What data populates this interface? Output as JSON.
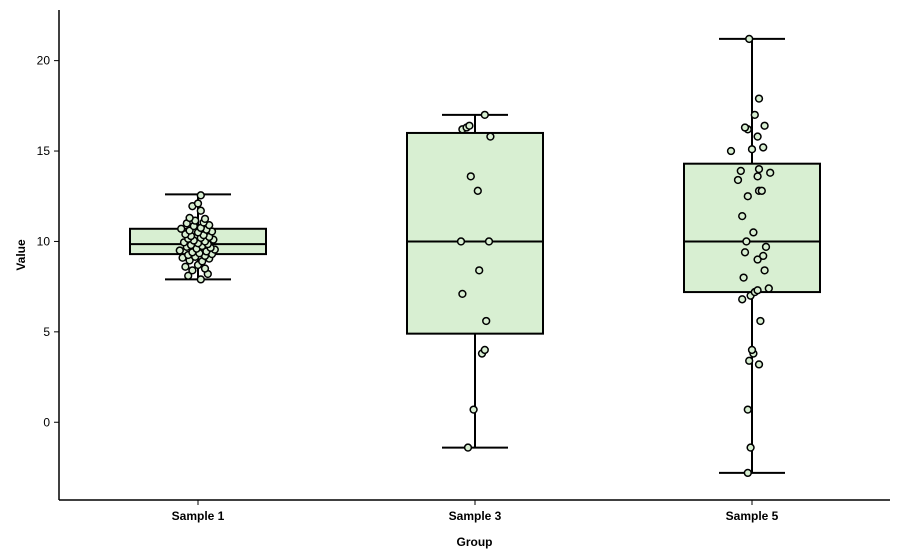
{
  "chart_data": {
    "type": "box",
    "xlabel": "Group",
    "ylabel": "Value",
    "ylim": [
      -4.3,
      22.8
    ],
    "yticks": [
      0,
      5,
      10,
      15,
      20
    ],
    "ytick_labels": [
      "0",
      "5",
      "10",
      "15",
      "20"
    ],
    "grid": false,
    "box_fill": "#d8efd2",
    "line_color": "#000000",
    "point_fill": "#d8efd2",
    "categories": [
      "Sample 1",
      "Sample 3",
      "Sample 5"
    ],
    "boxes": [
      {
        "category": "Sample 1",
        "whisker_low": 7.9,
        "q1": 9.3,
        "median": 9.85,
        "q3": 10.7,
        "whisker_high": 12.6
      },
      {
        "category": "Sample 3",
        "whisker_low": -1.4,
        "q1": 4.9,
        "median": 10.0,
        "q3": 16.0,
        "whisker_high": 17.0
      },
      {
        "category": "Sample 5",
        "whisker_low": -2.8,
        "q1": 7.2,
        "median": 10.0,
        "q3": 14.3,
        "whisker_high": 21.2
      }
    ],
    "points": [
      [
        [
          -0.07,
          8.1
        ],
        [
          0.02,
          7.9
        ],
        [
          0.07,
          8.2
        ],
        [
          -0.04,
          8.4
        ],
        [
          0.05,
          8.5
        ],
        [
          -0.09,
          8.6
        ],
        [
          0.0,
          8.7
        ],
        [
          0.03,
          8.9
        ],
        [
          -0.06,
          8.95
        ],
        [
          0.08,
          9.05
        ],
        [
          -0.11,
          9.1
        ],
        [
          -0.02,
          9.15
        ],
        [
          0.05,
          9.2
        ],
        [
          -0.07,
          9.25
        ],
        [
          0.1,
          9.3
        ],
        [
          0.01,
          9.35
        ],
        [
          -0.04,
          9.4
        ],
        [
          0.06,
          9.45
        ],
        [
          -0.13,
          9.5
        ],
        [
          0.12,
          9.55
        ],
        [
          -0.01,
          9.6
        ],
        [
          0.09,
          9.65
        ],
        [
          -0.08,
          9.7
        ],
        [
          0.03,
          9.75
        ],
        [
          -0.05,
          9.8
        ],
        [
          0.07,
          9.85
        ],
        [
          0.0,
          9.9
        ],
        [
          -0.1,
          9.95
        ],
        [
          0.05,
          10.0
        ],
        [
          -0.03,
          10.05
        ],
        [
          0.11,
          10.1
        ],
        [
          -0.07,
          10.15
        ],
        [
          0.02,
          10.2
        ],
        [
          0.08,
          10.25
        ],
        [
          -0.05,
          10.3
        ],
        [
          0.04,
          10.35
        ],
        [
          -0.09,
          10.4
        ],
        [
          0.0,
          10.5
        ],
        [
          0.1,
          10.55
        ],
        [
          -0.06,
          10.6
        ],
        [
          0.06,
          10.65
        ],
        [
          -0.12,
          10.7
        ],
        [
          0.02,
          10.75
        ],
        [
          -0.03,
          10.85
        ],
        [
          0.08,
          10.9
        ],
        [
          -0.08,
          11.0
        ],
        [
          0.04,
          11.05
        ],
        [
          -0.02,
          11.15
        ],
        [
          0.05,
          11.25
        ],
        [
          -0.06,
          11.3
        ],
        [
          0.02,
          11.7
        ],
        [
          -0.04,
          11.95
        ],
        [
          0.0,
          12.1
        ],
        [
          0.02,
          12.55
        ]
      ],
      [
        [
          -0.05,
          -1.4
        ],
        [
          -0.01,
          0.7
        ],
        [
          0.05,
          3.8
        ],
        [
          0.07,
          4.0
        ],
        [
          0.08,
          5.6
        ],
        [
          -0.09,
          7.1
        ],
        [
          0.03,
          8.4
        ],
        [
          -0.1,
          10.0
        ],
        [
          0.1,
          10.0
        ],
        [
          0.02,
          12.8
        ],
        [
          -0.03,
          13.6
        ],
        [
          0.11,
          15.8
        ],
        [
          -0.09,
          16.2
        ],
        [
          -0.06,
          16.3
        ],
        [
          -0.04,
          16.4
        ],
        [
          0.07,
          17.0
        ]
      ],
      [
        [
          -0.03,
          -2.8
        ],
        [
          -0.01,
          -1.4
        ],
        [
          -0.03,
          0.7
        ],
        [
          -0.02,
          3.4
        ],
        [
          0.05,
          3.2
        ],
        [
          0.01,
          3.8
        ],
        [
          0.0,
          4.0
        ],
        [
          0.06,
          5.6
        ],
        [
          -0.07,
          6.8
        ],
        [
          -0.01,
          7.0
        ],
        [
          0.02,
          7.2
        ],
        [
          0.04,
          7.3
        ],
        [
          0.12,
          7.4
        ],
        [
          -0.06,
          8.0
        ],
        [
          0.09,
          8.4
        ],
        [
          0.04,
          9.0
        ],
        [
          0.08,
          9.2
        ],
        [
          -0.05,
          9.4
        ],
        [
          0.1,
          9.7
        ],
        [
          -0.04,
          10.0
        ],
        [
          0.01,
          10.5
        ],
        [
          -0.07,
          11.4
        ],
        [
          -0.03,
          12.5
        ],
        [
          0.05,
          12.8
        ],
        [
          0.07,
          12.8
        ],
        [
          0.04,
          13.6
        ],
        [
          -0.1,
          13.4
        ],
        [
          -0.08,
          13.9
        ],
        [
          0.13,
          13.8
        ],
        [
          0.05,
          14.0
        ],
        [
          -0.15,
          15.0
        ],
        [
          0.0,
          15.1
        ],
        [
          0.08,
          15.2
        ],
        [
          0.04,
          15.8
        ],
        [
          -0.03,
          16.2
        ],
        [
          -0.05,
          16.3
        ],
        [
          0.09,
          16.4
        ],
        [
          0.02,
          17.0
        ],
        [
          0.05,
          17.9
        ],
        [
          -0.02,
          21.2
        ]
      ]
    ]
  }
}
